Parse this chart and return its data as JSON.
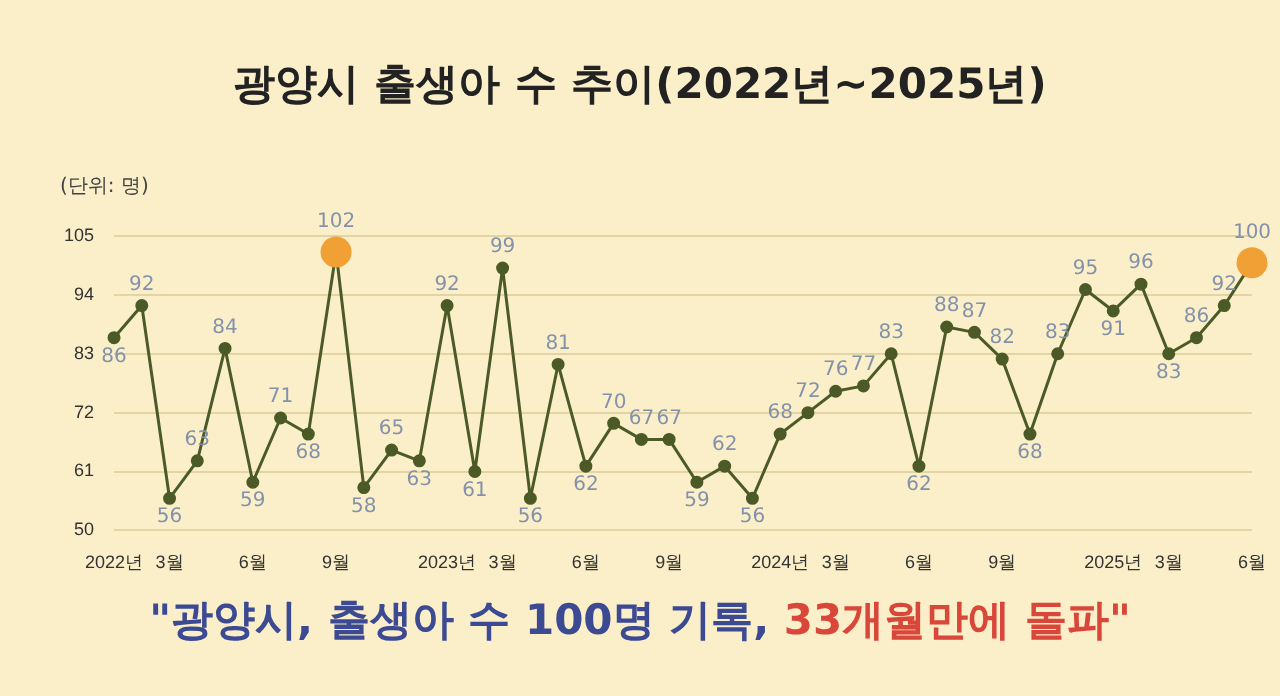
{
  "chart_data": {
    "type": "line",
    "title": "광양시 출생아 수 추이(2022년~2025년)",
    "annotations": [
      "(단위: 명)",
      "\"광양시, 출생아 수 100명 기록, ",
      "33개월만에 돌파\""
    ],
    "categories": [
      "2022년",
      null,
      "3월",
      null,
      null,
      "6월",
      null,
      null,
      "9월",
      null,
      null,
      null,
      "2023년",
      null,
      "3월",
      null,
      null,
      "6월",
      null,
      null,
      "9월",
      null,
      null,
      null,
      "2024년",
      null,
      "3월",
      null,
      null,
      "6월",
      null,
      null,
      "9월",
      null,
      null,
      null,
      "2025년",
      null,
      "3월",
      null,
      null,
      "6월"
    ],
    "series": [
      {
        "color": "#4b5a26",
        "values": [
          86,
          92,
          56,
          63,
          84,
          59,
          71,
          68,
          102,
          58,
          65,
          63,
          92,
          61,
          99,
          56,
          81,
          62,
          70,
          67,
          67,
          59,
          62,
          56,
          68,
          72,
          76,
          77,
          83,
          62,
          88,
          87,
          82,
          68,
          83,
          95,
          91,
          96,
          83,
          86,
          92,
          100
        ],
        "colors": [
          "#4b5a26",
          "#4b5a26",
          "#4b5a26",
          "#4b5a26",
          "#4b5a26",
          "#4b5a26",
          "#4b5a26",
          "#4b5a26",
          "#f0a035",
          "#4b5a26",
          "#4b5a26",
          "#4b5a26",
          "#4b5a26",
          "#4b5a26",
          "#4b5a26",
          "#4b5a26",
          "#4b5a26",
          "#4b5a26",
          "#4b5a26",
          "#4b5a26",
          "#4b5a26",
          "#4b5a26",
          "#4b5a26",
          "#4b5a26",
          "#4b5a26",
          "#4b5a26",
          "#4b5a26",
          "#4b5a26",
          "#4b5a26",
          "#4b5a26",
          "#4b5a26",
          "#4b5a26",
          "#4b5a26",
          "#4b5a26",
          "#4b5a26",
          "#4b5a26",
          "#4b5a26",
          "#4b5a26",
          "#4b5a26",
          "#4b5a26",
          "#4b5a26",
          "#f0a035"
        ]
      }
    ],
    "ylim": [
      50,
      105
    ],
    "yticks": [
      50,
      61,
      72,
      83,
      94,
      105
    ],
    "grid": "y",
    "legend": false,
    "marker": "circle",
    "line_style": "solid",
    "data_labels": true
  }
}
